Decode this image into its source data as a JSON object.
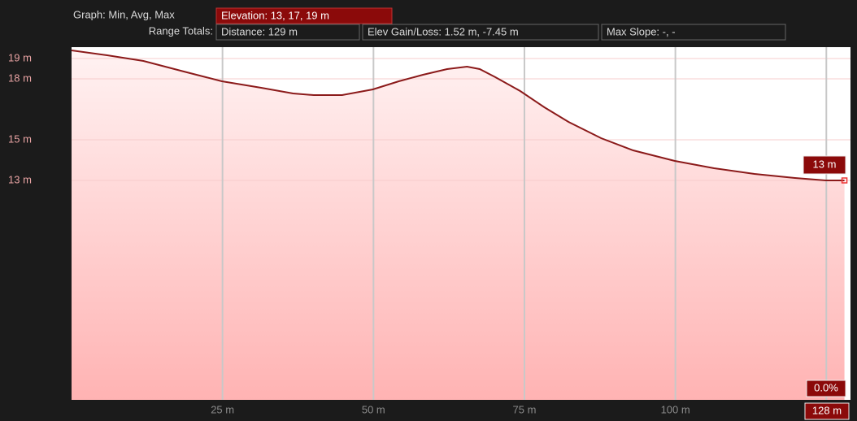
{
  "header": {
    "graph_label": "Graph: Min, Avg, Max",
    "elevation": "Elevation: 13, 17, 19 m",
    "range_label": "Range Totals:",
    "distance": "Distance: 129 m",
    "gain_loss": "Elev Gain/Loss: 1.52 m, -7.45 m",
    "slope": "Max Slope: -, -"
  },
  "chart_data": {
    "type": "area",
    "color": "#8b1a1a",
    "x": [
      0,
      5.9,
      11.9,
      18.6,
      24.9,
      31.4,
      36.7,
      40.1,
      44.8,
      49.9,
      54.2,
      58.2,
      62.2,
      65.5,
      67.6,
      70.2,
      74.3,
      78.3,
      82.3,
      87.7,
      93,
      99.9,
      106.4,
      113.1,
      119.8,
      124.9,
      128
    ],
    "values": [
      19.4,
      19.16,
      18.88,
      18.36,
      17.88,
      17.56,
      17.28,
      17.2,
      17.2,
      17.48,
      17.88,
      18.2,
      18.48,
      18.6,
      18.48,
      18.08,
      17.4,
      16.6,
      15.88,
      15.08,
      14.48,
      13.96,
      13.6,
      13.32,
      13.12,
      13.0,
      13.0
    ],
    "xlim": [
      0,
      129
    ],
    "ylim": [
      2.2,
      19.56
    ],
    "xticks": [
      {
        "value": 25,
        "label": "25 m"
      },
      {
        "value": 50,
        "label": "50 m"
      },
      {
        "value": 75,
        "label": "75 m"
      },
      {
        "value": 100,
        "label": "100 m"
      }
    ],
    "xgrid": [
      25,
      50,
      75,
      100,
      125
    ],
    "yticks": [
      {
        "value": 19,
        "label": "19 m"
      },
      {
        "value": 18,
        "label": "18 m"
      },
      {
        "value": 15,
        "label": "15 m"
      },
      {
        "value": 13,
        "label": "13 m"
      }
    ],
    "cursor": {
      "x": 128,
      "x_label": "128 m",
      "y": 13,
      "y_label": "13 m",
      "slope_label": "0.0%"
    }
  }
}
